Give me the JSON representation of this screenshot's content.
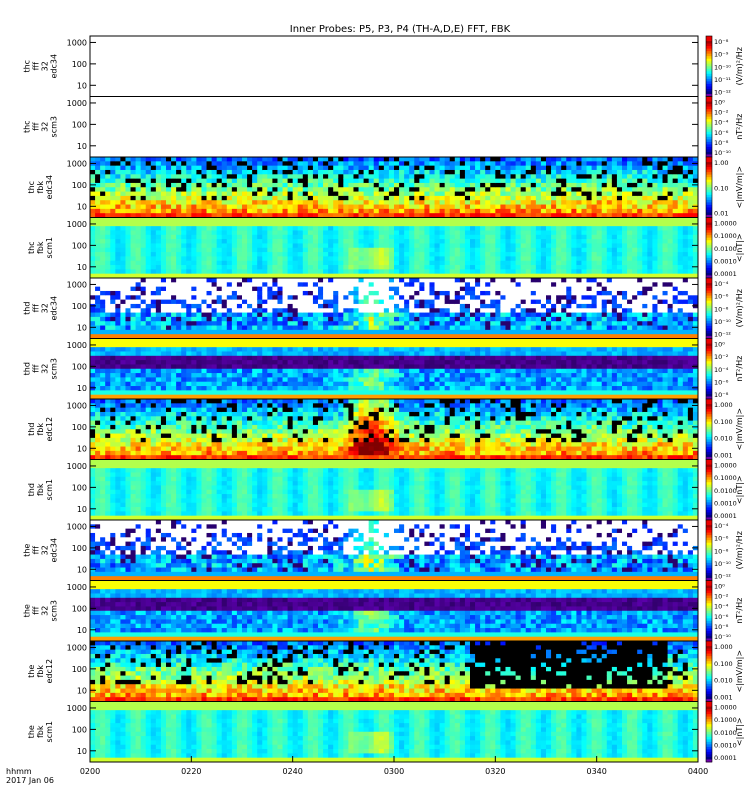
{
  "chart_data": {
    "type": "heatmap",
    "title": "Inner Probes: P5, P3, P4 (TH-A,D,E) FFT, FBK",
    "x_label_line1": "hhmm",
    "x_label_line2": "2017 Jan 06",
    "x_tick_labels": [
      "0200",
      "0220",
      "0240",
      "0300",
      "0320",
      "0340",
      "0400"
    ],
    "x_range": [
      "0200",
      "0400"
    ],
    "y_scale": "log",
    "y_tick_labels": [
      "10",
      "100",
      "1000"
    ],
    "panels": [
      {
        "label": [
          "thc",
          "fff",
          "32",
          "edc34"
        ],
        "unit": "(V/m)²/Hz",
        "cbar_labels": [
          "10⁻⁸",
          "10⁻⁹",
          "10⁻¹⁰",
          "10⁻¹¹",
          "10⁻¹²"
        ],
        "pattern": "empty"
      },
      {
        "label": [
          "thc",
          "fff",
          "32",
          "scm3"
        ],
        "unit": "nT²/Hz",
        "cbar_labels": [
          "10⁰",
          "10⁻²",
          "10⁻⁴",
          "10⁻⁶",
          "10⁻⁸",
          "10⁻¹⁰"
        ],
        "pattern": "empty"
      },
      {
        "label": [
          "thc",
          "fbk",
          "edc34"
        ],
        "unit": "<|mV/m|>",
        "cbar_labels": [
          "1.00",
          "0.10",
          "0.01"
        ],
        "pattern": "fbk_e"
      },
      {
        "label": [
          "thc",
          "fbk",
          "scm1"
        ],
        "unit": "<|nT|>",
        "cbar_labels": [
          "1.0000",
          "0.1000",
          "0.0100",
          "0.0010",
          "0.0001"
        ],
        "pattern": "fbk_b"
      },
      {
        "label": [
          "thd",
          "fff",
          "32",
          "edc34"
        ],
        "unit": "(V/m)²/Hz",
        "cbar_labels": [
          "10⁻⁴",
          "10⁻⁶",
          "10⁻⁸",
          "10⁻¹⁰",
          "10⁻¹²"
        ],
        "pattern": "fff_e"
      },
      {
        "label": [
          "thd",
          "fff",
          "32",
          "scm3"
        ],
        "unit": "nT²/Hz",
        "cbar_labels": [
          "10⁰",
          "10⁻²",
          "10⁻⁴",
          "10⁻⁶",
          "10⁻⁸"
        ],
        "pattern": "fff_b"
      },
      {
        "label": [
          "thd",
          "fbk",
          "edc12"
        ],
        "unit": "<|mV/m|>",
        "cbar_labels": [
          "1.000",
          "0.100",
          "0.010",
          "0.001"
        ],
        "pattern": "fbk_e2"
      },
      {
        "label": [
          "thd",
          "fbk",
          "scm1"
        ],
        "unit": "<|nT|>",
        "cbar_labels": [
          "1.0000",
          "0.1000",
          "0.0100",
          "0.0010",
          "0.0001"
        ],
        "pattern": "fbk_b"
      },
      {
        "label": [
          "the",
          "fff",
          "32",
          "edc34"
        ],
        "unit": "(V/m)²/Hz",
        "cbar_labels": [
          "10⁻⁴",
          "10⁻⁶",
          "10⁻⁸",
          "10⁻¹⁰",
          "10⁻¹²"
        ],
        "pattern": "fff_e"
      },
      {
        "label": [
          "the",
          "fff",
          "32",
          "scm3"
        ],
        "unit": "nT²/Hz",
        "cbar_labels": [
          "10⁰",
          "10⁻²",
          "10⁻⁴",
          "10⁻⁶",
          "10⁻⁸",
          "10⁻¹⁰"
        ],
        "pattern": "fff_b"
      },
      {
        "label": [
          "the",
          "fbk",
          "edc12"
        ],
        "unit": "<|mV/m|>",
        "cbar_labels": [
          "1.000",
          "0.100",
          "0.010",
          "0.001"
        ],
        "pattern": "fbk_e3"
      },
      {
        "label": [
          "the",
          "fbk",
          "scm1"
        ],
        "unit": "<|nT|>",
        "cbar_labels": [
          "1.0000",
          "0.1000",
          "0.0100",
          "0.0010",
          "0.0001"
        ],
        "pattern": "fbk_b"
      }
    ]
  }
}
